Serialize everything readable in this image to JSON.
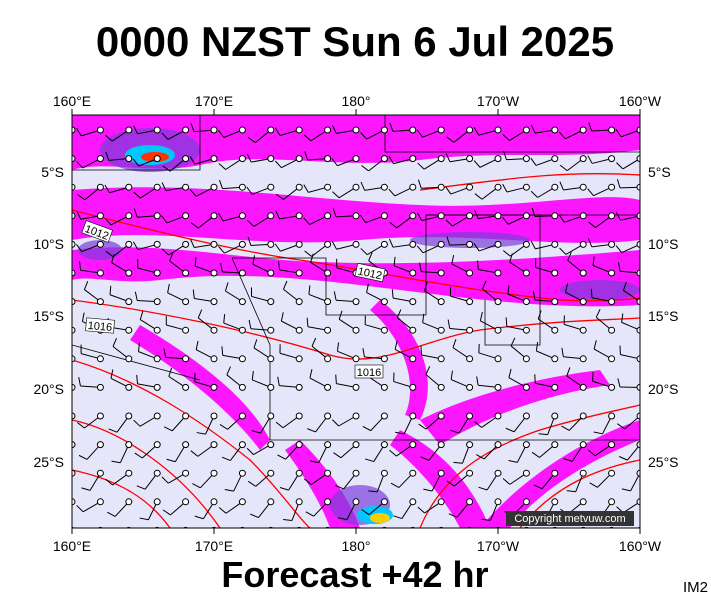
{
  "title": "0000 NZST Sun 6 Jul 2025",
  "top_axis": [
    "160°E",
    "170°E",
    "180°",
    "170°W",
    "160°W"
  ],
  "bottom_axis": [
    "160°E",
    "170°E",
    "180°",
    "170°W",
    "160°W"
  ],
  "left_axis": [
    "5°S",
    "10°S",
    "15°S",
    "20°S",
    "25°S"
  ],
  "right_axis": [
    "5°S",
    "10°S",
    "15°S",
    "20°S",
    "25°S"
  ],
  "isobar_labels": [
    "1012",
    "1012",
    "1016",
    "1016"
  ],
  "copyright": "Copyright metvuw.com",
  "footer": "Forecast +42 hr",
  "code": "IM2"
}
